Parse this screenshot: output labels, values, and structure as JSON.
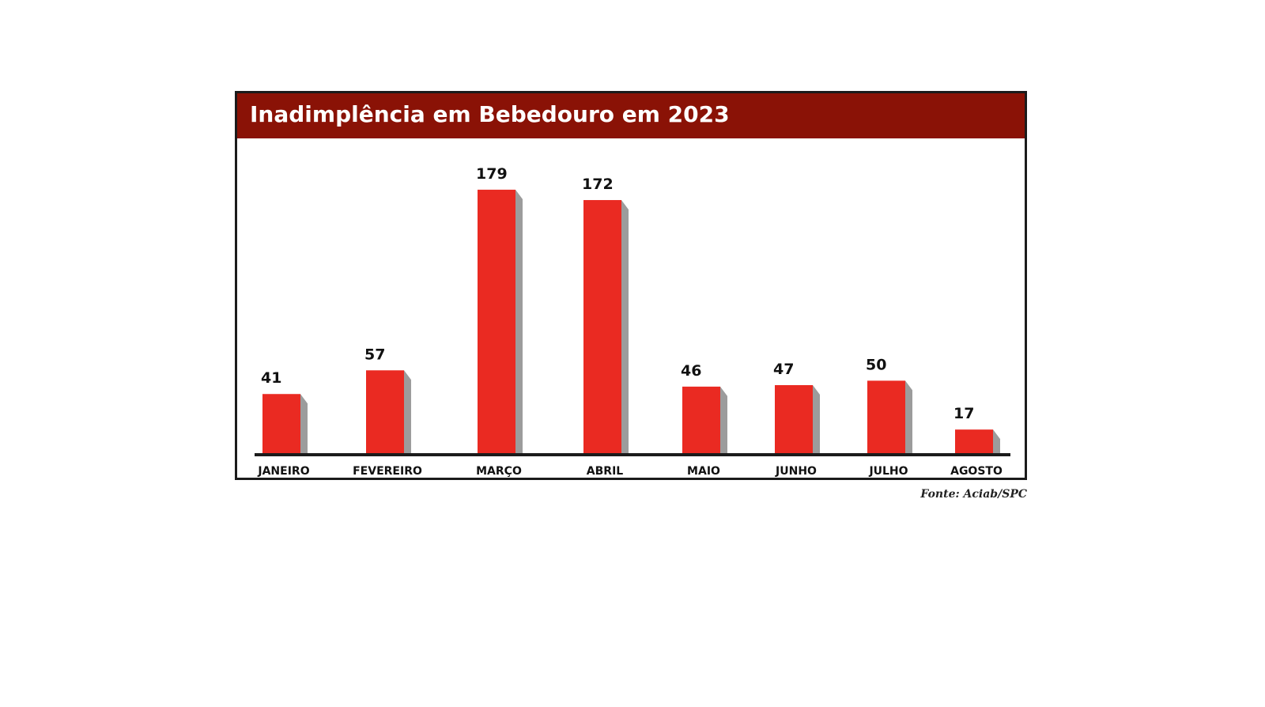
{
  "chart_data": {
    "type": "bar",
    "title": "Inadimplência em Bebedouro em 2023",
    "categories": [
      "JANEIRO",
      "FEVEREIRO",
      "MARÇO",
      "ABRIL",
      "MAIO",
      "JUNHO",
      "JULHO",
      "AGOSTO"
    ],
    "values": [
      41,
      57,
      179,
      172,
      46,
      47,
      50,
      17
    ],
    "value_labels": [
      "41",
      "57",
      "179",
      "172",
      "46",
      "47",
      "50",
      "17"
    ],
    "xlabel": "",
    "ylabel": "",
    "ylim": [
      0,
      180
    ],
    "grid": false,
    "legend": "none",
    "source": "Fonte: Aciab/SPC"
  },
  "colors": {
    "title_bar": "#8a1206",
    "bar": "#ea2a22",
    "bar_shadow": "#9c9c9c",
    "axis": "#1b1b1b",
    "text": "#111111"
  }
}
